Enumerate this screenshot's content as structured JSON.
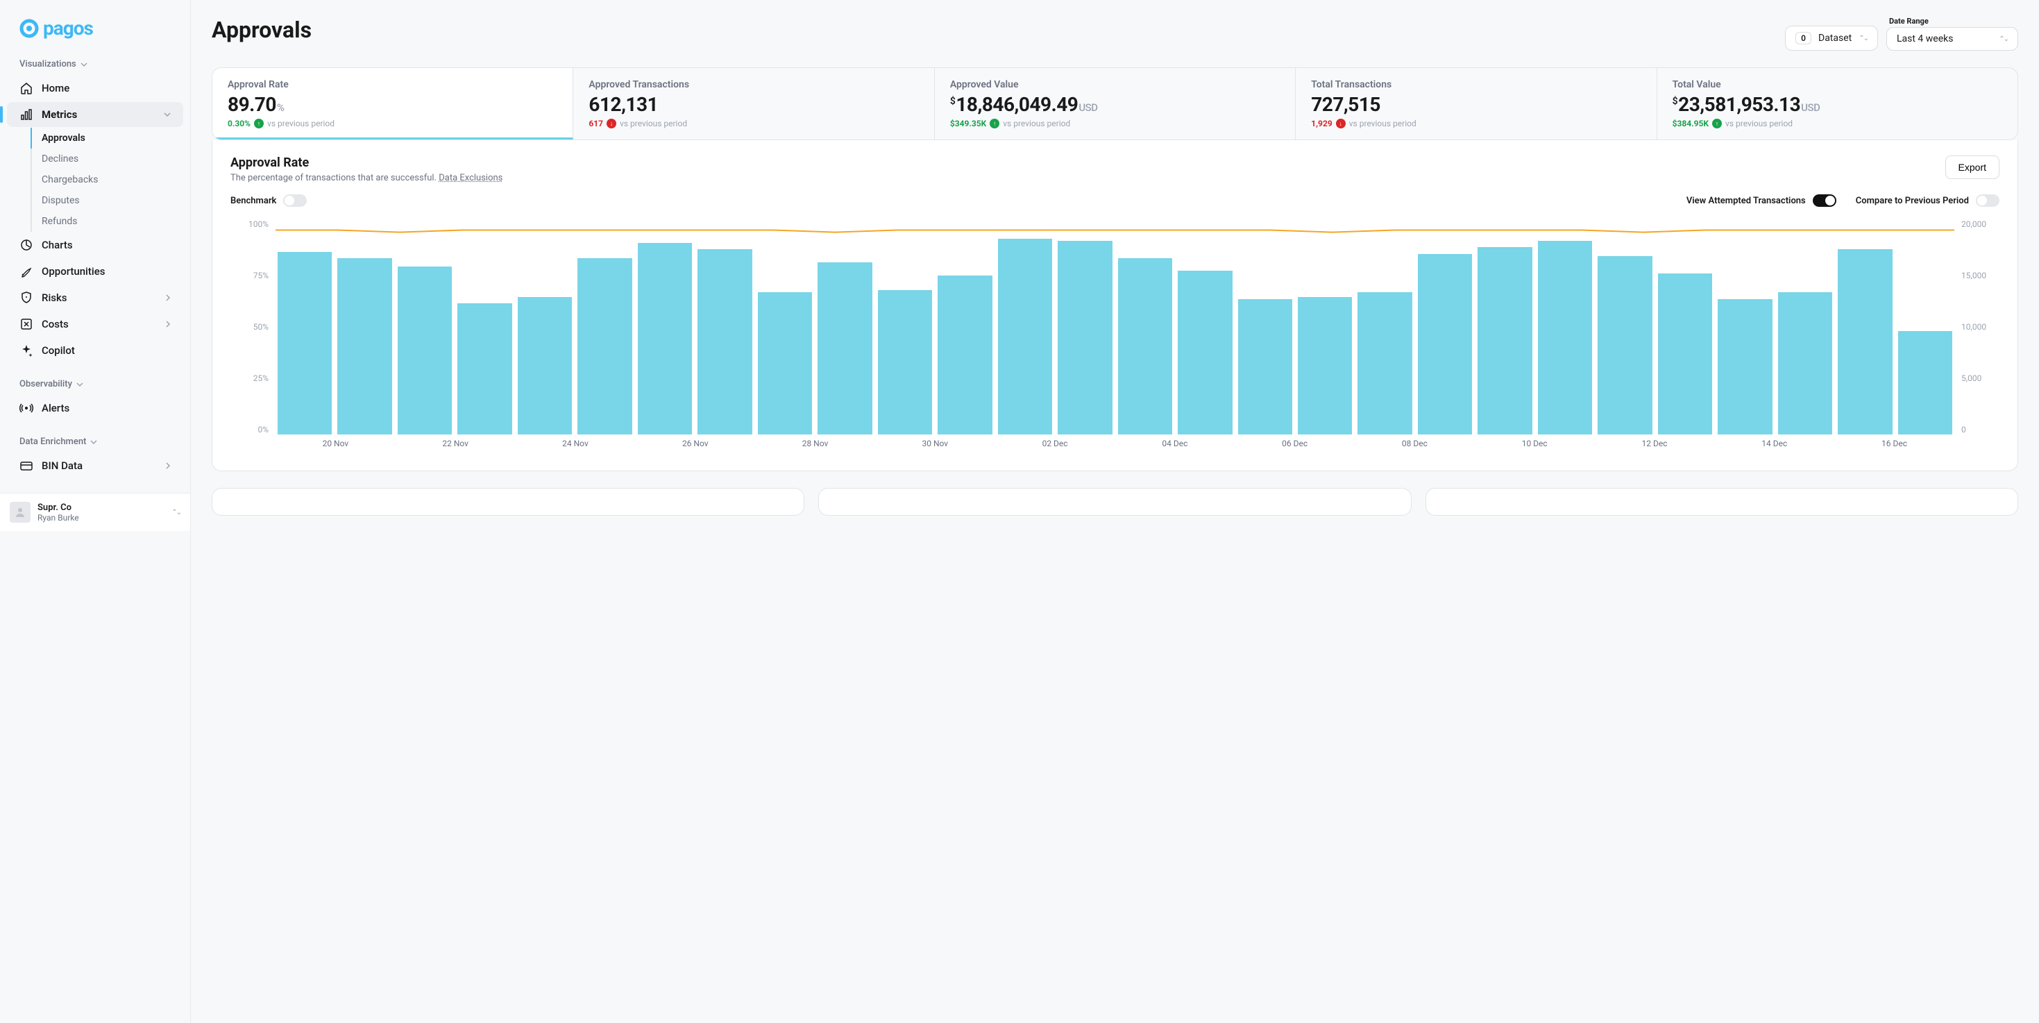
{
  "brand": "pagos",
  "sidebar": {
    "sections": {
      "visualizations": "Visualizations",
      "observability": "Observability",
      "dataEnrichment": "Data Enrichment"
    },
    "items": {
      "home": "Home",
      "metrics": "Metrics",
      "charts": "Charts",
      "opportunities": "Opportunities",
      "risks": "Risks",
      "costs": "Costs",
      "copilot": "Copilot",
      "alerts": "Alerts",
      "binData": "BIN Data"
    },
    "subMetrics": {
      "approvals": "Approvals",
      "declines": "Declines",
      "chargebacks": "Chargebacks",
      "disputes": "Disputes",
      "refunds": "Refunds"
    }
  },
  "workspace": {
    "name": "Supr. Co",
    "user": "Ryan Burke"
  },
  "header": {
    "title": "Approvals",
    "dataset": {
      "count": "0",
      "label": "Dataset"
    },
    "dateRange": {
      "label": "Date Range",
      "value": "Last 4 weeks"
    }
  },
  "kpis": [
    {
      "label": "Approval Rate",
      "value": "89.70",
      "unit": "%",
      "delta": "0.30%",
      "dir": "up",
      "vs": "vs previous period",
      "active": true
    },
    {
      "label": "Approved Transactions",
      "value": "612,131",
      "delta": "617",
      "dir": "down",
      "vs": "vs previous period"
    },
    {
      "label": "Approved Value",
      "prefix": "$",
      "value": "18,846,049.49",
      "unit": "USD",
      "delta": "$349.35K",
      "dir": "up",
      "vs": "vs previous period"
    },
    {
      "label": "Total Transactions",
      "value": "727,515",
      "delta": "1,929",
      "dir": "down",
      "vs": "vs previous period"
    },
    {
      "label": "Total Value",
      "prefix": "$",
      "value": "23,581,953.13",
      "unit": "USD",
      "delta": "$384.95K",
      "dir": "up",
      "vs": "vs previous period"
    }
  ],
  "panel": {
    "title": "Approval Rate",
    "subtitle": "The percentage of transactions that are successful.",
    "exclusionsLink": "Data Exclusions",
    "export": "Export",
    "toggles": {
      "benchmark": {
        "label": "Benchmark",
        "on": false
      },
      "attempted": {
        "label": "View Attempted Transactions",
        "on": true
      },
      "compare": {
        "label": "Compare to Previous Period",
        "on": false
      }
    }
  },
  "chart": {
    "type": "bar+line",
    "bar_color": "#79d5e8",
    "line_color": "#f5a623",
    "background": "#ffffff",
    "left_axis": {
      "ticks": [
        "100%",
        "75%",
        "50%",
        "25%",
        "0%"
      ],
      "ylim": [
        0,
        100
      ]
    },
    "right_axis": {
      "ticks": [
        "20,000",
        "15,000",
        "10,000",
        "5,000",
        "0"
      ],
      "ylim": [
        0,
        20000
      ]
    },
    "bars_pct": [
      85,
      82,
      78,
      61,
      64,
      82,
      89,
      86,
      66,
      80,
      67,
      74,
      91,
      90,
      82,
      76,
      63,
      64,
      66,
      84,
      87,
      90,
      83,
      75,
      63,
      66,
      86,
      48
    ],
    "line_pct": [
      95,
      95,
      94,
      95,
      95,
      95,
      95,
      95,
      95,
      94,
      95,
      95,
      95,
      95,
      95,
      95,
      95,
      94,
      95,
      95,
      95,
      95,
      94,
      95,
      95,
      95,
      95,
      95
    ],
    "x_labels": [
      "20 Nov",
      "22 Nov",
      "24 Nov",
      "26 Nov",
      "28 Nov",
      "30 Nov",
      "02 Dec",
      "04 Dec",
      "06 Dec",
      "08 Dec",
      "10 Dec",
      "12 Dec",
      "14 Dec",
      "16 Dec"
    ]
  }
}
